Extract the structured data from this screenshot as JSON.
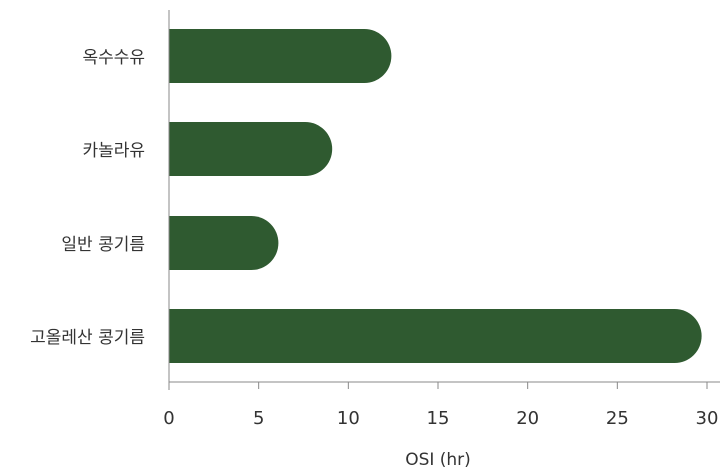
{
  "chart_data": {
    "type": "bar",
    "orientation": "horizontal",
    "categories": [
      "옥수수유",
      "카놀라유",
      "일반 콩기름",
      "고올레산 콩기름"
    ],
    "values": [
      12.4,
      9.1,
      6.1,
      29.7
    ],
    "title": "",
    "xlabel": "OSI (hr)",
    "ylabel": "",
    "xlim": [
      0,
      30
    ],
    "xticks": [
      "0",
      "5",
      "10",
      "15",
      "20",
      "25",
      "30"
    ],
    "grid": false,
    "legend": "none",
    "bar_color": "#2f5a30"
  }
}
